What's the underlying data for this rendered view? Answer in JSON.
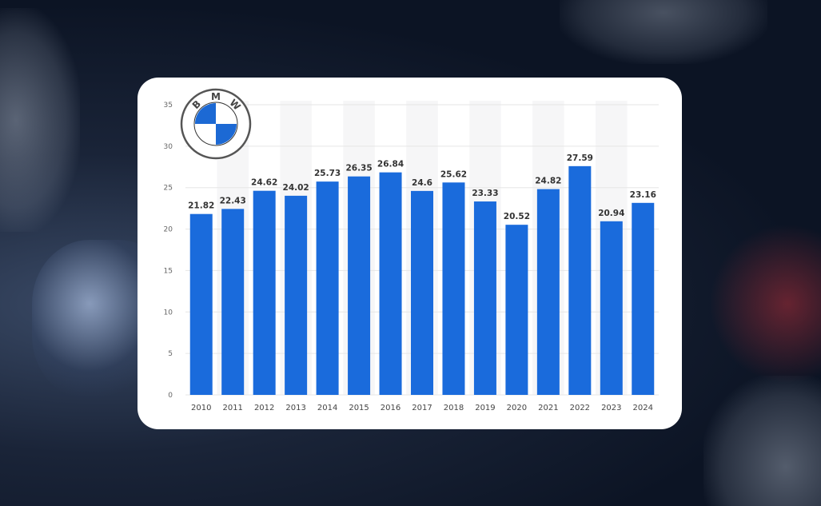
{
  "chart_data": {
    "type": "bar",
    "categories": [
      "2010",
      "2011",
      "2012",
      "2013",
      "2014",
      "2015",
      "2016",
      "2017",
      "2018",
      "2019",
      "2020",
      "2021",
      "2022",
      "2023",
      "2024"
    ],
    "values": [
      21.82,
      22.43,
      24.62,
      24.02,
      25.73,
      26.35,
      26.84,
      24.6,
      25.62,
      23.33,
      20.52,
      24.82,
      27.59,
      20.94,
      23.16
    ],
    "data_labels": [
      "21.82",
      "22.43",
      "24.62",
      "24.02",
      "25.73",
      "26.35",
      "26.84",
      "24.6",
      "25.62",
      "23.33",
      "20.52",
      "24.82",
      "27.59",
      "20.94",
      "23.16"
    ],
    "yticks": [
      "0",
      "5",
      "10",
      "15",
      "20",
      "25",
      "30",
      "35"
    ],
    "ylim": [
      0,
      35
    ],
    "title": "",
    "xlabel": "",
    "ylabel": "",
    "grid": true,
    "bar_color": "#1a6bdc"
  },
  "logo": {
    "text": "BMW",
    "color": "#1c69d4"
  }
}
